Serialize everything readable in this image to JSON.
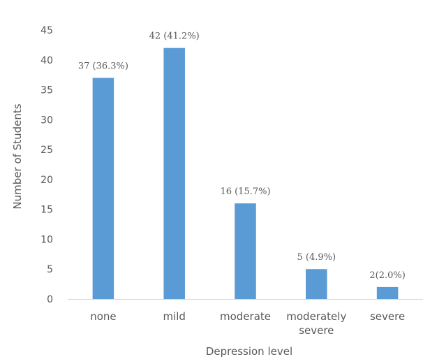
{
  "chart_data": {
    "type": "bar",
    "title": "",
    "xlabel": "Depression level",
    "ylabel": "Number of Students",
    "categories": [
      [
        "none"
      ],
      [
        "mild"
      ],
      [
        "moderate"
      ],
      [
        "moderately",
        "severe"
      ],
      [
        "severe"
      ]
    ],
    "values": [
      37,
      42,
      16,
      5,
      2
    ],
    "data_labels": [
      "37 (36.3%)",
      "42 (41.2%)",
      "16 (15.7%)",
      "5 (4.9%)",
      "2(2.0%)"
    ],
    "yticks": [
      "0",
      "5",
      "10",
      "15",
      "20",
      "25",
      "30",
      "35",
      "40",
      "45"
    ],
    "ylim": [
      0,
      45
    ],
    "grid": false,
    "legend": "none",
    "bar_color": "#5b9bd5",
    "axis_color": "#d9d9d9"
  }
}
